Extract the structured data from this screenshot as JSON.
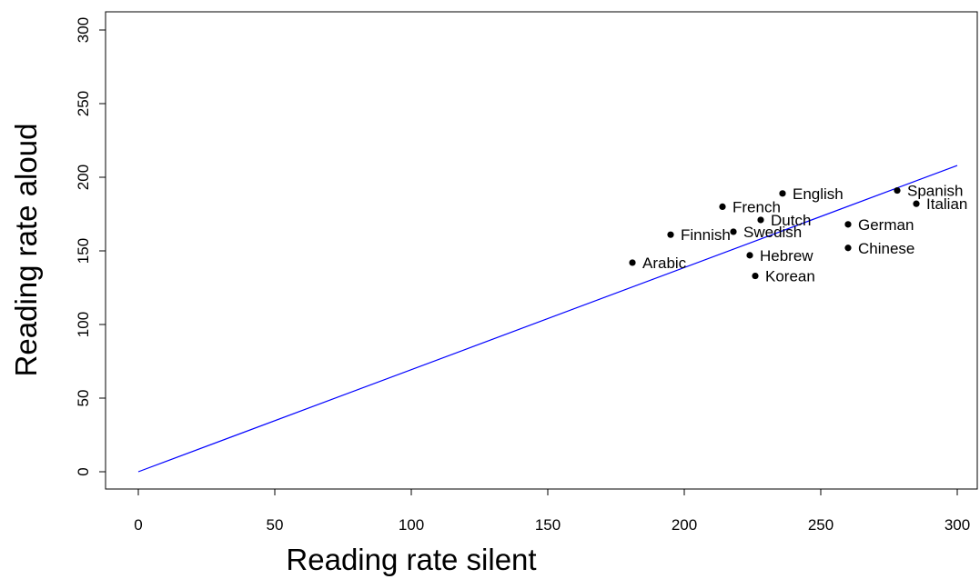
{
  "chart_data": {
    "type": "scatter",
    "title": "",
    "xlabel": "Reading rate silent",
    "ylabel": "Reading rate aloud",
    "xlim": [
      0,
      300
    ],
    "ylim": [
      0,
      300
    ],
    "xticks": [
      0,
      50,
      100,
      150,
      200,
      250,
      300
    ],
    "yticks": [
      0,
      50,
      100,
      150,
      200,
      250,
      300
    ],
    "grid": false,
    "legend": "none",
    "point_color": "#000000",
    "line_color": "#0000ff",
    "points": [
      {
        "label": "Arabic",
        "x": 181,
        "y": 142
      },
      {
        "label": "Finnish",
        "x": 195,
        "y": 161
      },
      {
        "label": "Swedish",
        "x": 218,
        "y": 163
      },
      {
        "label": "French",
        "x": 214,
        "y": 180
      },
      {
        "label": "Dutch",
        "x": 228,
        "y": 171
      },
      {
        "label": "English",
        "x": 236,
        "y": 189
      },
      {
        "label": "Hebrew",
        "x": 224,
        "y": 147
      },
      {
        "label": "Korean",
        "x": 226,
        "y": 133
      },
      {
        "label": "German",
        "x": 260,
        "y": 168
      },
      {
        "label": "Chinese",
        "x": 260,
        "y": 152
      },
      {
        "label": "Spanish",
        "x": 278,
        "y": 191
      },
      {
        "label": "Italian",
        "x": 285,
        "y": 182
      }
    ],
    "reference_line": {
      "x": [
        0,
        300
      ],
      "y": [
        0,
        208
      ]
    }
  }
}
